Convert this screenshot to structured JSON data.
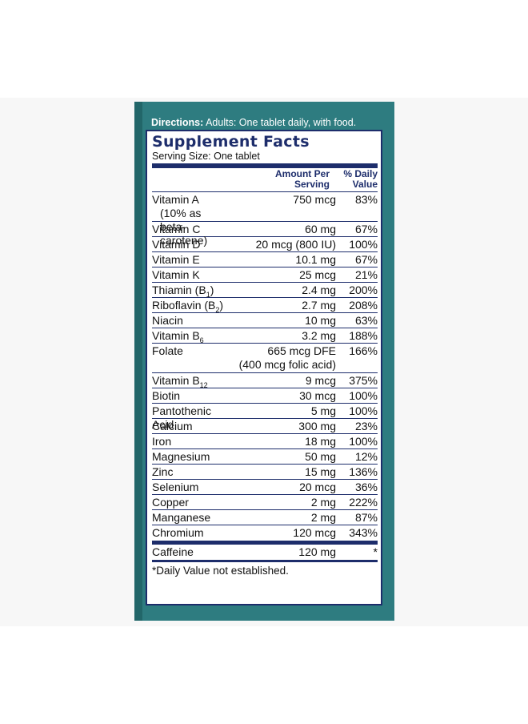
{
  "directions": {
    "label": "Directions:",
    "text": "Adults:  One tablet daily, with food."
  },
  "facts": {
    "title": "Supplement Facts",
    "serving": "Serving Size: One tablet",
    "col_amount": "Amount Per",
    "col_amount2": "Serving",
    "col_dv": "% Daily",
    "col_dv2": "Value",
    "rows": [
      {
        "name": "Vitamin A",
        "note": "(10% as beta-carotene)",
        "amount": "750 mcg",
        "dv": "83%"
      },
      {
        "name": "Vitamin C",
        "amount": "60 mg",
        "dv": "67%"
      },
      {
        "name": "Vitamin D",
        "amount": "20 mcg (800 IU)",
        "dv": "100%"
      },
      {
        "name": "Vitamin E",
        "amount": "10.1 mg",
        "dv": "67%"
      },
      {
        "name": "Vitamin K",
        "amount": "25 mcg",
        "dv": "21%"
      },
      {
        "name": "Thiamin (B",
        "sub": "1",
        "after": ")",
        "amount": "2.4 mg",
        "dv": "200%"
      },
      {
        "name": "Riboflavin (B",
        "sub": "2",
        "after": ")",
        "amount": "2.7 mg",
        "dv": "208%"
      },
      {
        "name": "Niacin",
        "amount": "10 mg",
        "dv": "63%"
      },
      {
        "name": "Vitamin B",
        "sub": "6",
        "amount": "3.2 mg",
        "dv": "188%"
      },
      {
        "name": "Folate",
        "amount": "665 mcg DFE",
        "amount_note": "(400 mcg folic acid)",
        "dv": "166%"
      },
      {
        "name": "Vitamin B",
        "sub": "12",
        "amount": "9 mcg",
        "dv": "375%"
      },
      {
        "name": "Biotin",
        "amount": "30 mcg",
        "dv": "100%"
      },
      {
        "name": "Pantothenic Acid",
        "amount": "5 mg",
        "dv": "100%"
      },
      {
        "name": "Calcium",
        "amount": "300 mg",
        "dv": "23%"
      },
      {
        "name": "Iron",
        "amount": "18 mg",
        "dv": "100%"
      },
      {
        "name": "Magnesium",
        "amount": "50 mg",
        "dv": "12%"
      },
      {
        "name": "Zinc",
        "amount": "15 mg",
        "dv": "136%"
      },
      {
        "name": "Selenium",
        "amount": "20 mcg",
        "dv": "36%"
      },
      {
        "name": "Copper",
        "amount": "2 mg",
        "dv": "222%"
      },
      {
        "name": "Manganese",
        "amount": "2 mg",
        "dv": "87%"
      },
      {
        "name": "Chromium",
        "amount": "120 mcg",
        "dv": "343%"
      }
    ],
    "caffeine": {
      "name": "Caffeine",
      "amount": "120 mg",
      "dv": "*"
    },
    "footnote": "*Daily Value not established."
  },
  "colors": {
    "teal": "#2e7c80",
    "navy": "#1d2d6b"
  }
}
